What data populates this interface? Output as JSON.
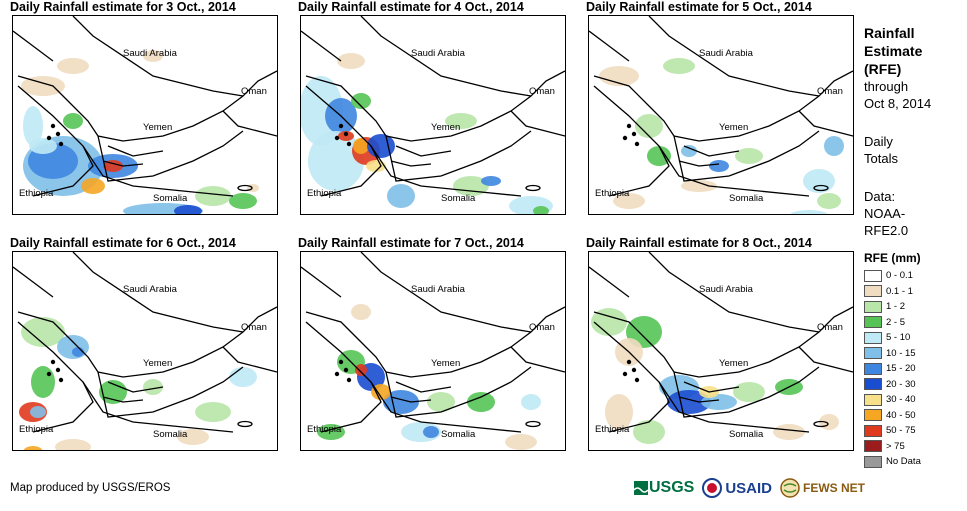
{
  "panels": [
    {
      "title": "Daily Rainfall estimate for 3 Oct., 2014",
      "variant": 0
    },
    {
      "title": "Daily Rainfall estimate for 4 Oct., 2014",
      "variant": 1
    },
    {
      "title": "Daily Rainfall estimate for 5 Oct., 2014",
      "variant": 2
    },
    {
      "title": "Daily Rainfall estimate for 6 Oct., 2014",
      "variant": 3
    },
    {
      "title": "Daily Rainfall estimate for 7 Oct., 2014",
      "variant": 4
    },
    {
      "title": "Daily Rainfall estimate for 8 Oct., 2014",
      "variant": 5
    }
  ],
  "country_labels": {
    "saudi_arabia": "Saudi Arabia",
    "oman": "Oman",
    "yemen": "Yemen",
    "ethiopia": "Ethiopia",
    "somalia": "Somalia"
  },
  "side": {
    "title_line1": "Rainfall",
    "title_line2": "Estimate",
    "title_line3": "(RFE)",
    "through": "through",
    "date": "Oct 8, 2014",
    "daily": "Daily",
    "totals": "Totals",
    "data_label": "Data:",
    "source1": "NOAA-",
    "source2": "RFE2.0"
  },
  "legend": {
    "title": "RFE (mm)",
    "items": [
      {
        "label": "0 - 0.1",
        "color": "#ffffff"
      },
      {
        "label": "0.1 - 1",
        "color": "#f0dcc0"
      },
      {
        "label": "1 - 2",
        "color": "#b8e6a8"
      },
      {
        "label": "2 - 5",
        "color": "#55c455"
      },
      {
        "label": "5 - 10",
        "color": "#bfe9f5"
      },
      {
        "label": "10 - 15",
        "color": "#7fbfe8"
      },
      {
        "label": "15 - 20",
        "color": "#3f86e0"
      },
      {
        "label": "20 - 30",
        "color": "#1a4ed0"
      },
      {
        "label": "30 - 40",
        "color": "#f7e08a"
      },
      {
        "label": "40 - 50",
        "color": "#f5a623"
      },
      {
        "label": "50 - 75",
        "color": "#e03a1e"
      },
      {
        "label": "> 75",
        "color": "#9b1c1c"
      },
      {
        "label": "No Data",
        "color": "#999999"
      }
    ]
  },
  "footer": {
    "credit": "Map produced by USGS/EROS",
    "logo_usgs": "USGS",
    "logo_usaid": "USAID",
    "logo_fews": "FEWS NET"
  }
}
